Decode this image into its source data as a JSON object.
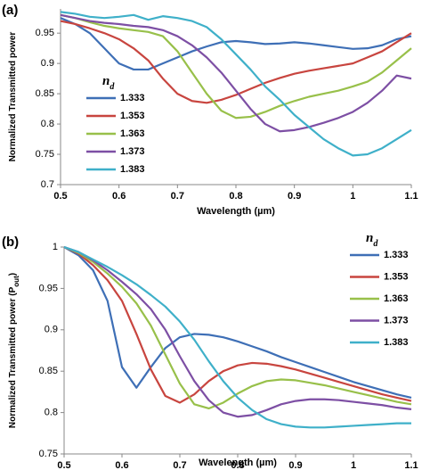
{
  "chart_data": [
    {
      "type": "line",
      "label": "(a)",
      "xlabel": "Wavelength (µm)",
      "ylabel": "Normalized Transmitted power",
      "legend_title": {
        "base": "n",
        "sub": "d"
      },
      "legend": "lower left",
      "xlim": [
        0.5,
        1.1
      ],
      "xticks": [
        0.5,
        0.6,
        0.7,
        0.8,
        0.9,
        1,
        1.1
      ],
      "ylim": [
        0.7,
        0.99
      ],
      "yticks": [
        0.7,
        0.75,
        0.8,
        0.85,
        0.9,
        0.95
      ],
      "x": [
        0.5,
        0.525,
        0.55,
        0.575,
        0.6,
        0.625,
        0.65,
        0.675,
        0.7,
        0.725,
        0.75,
        0.775,
        0.8,
        0.825,
        0.85,
        0.875,
        0.9,
        0.925,
        0.95,
        0.975,
        1.0,
        1.025,
        1.05,
        1.075,
        1.1
      ],
      "series": [
        {
          "name": "1.333",
          "color": "#3e6fb6",
          "values": [
            0.975,
            0.965,
            0.95,
            0.925,
            0.9,
            0.89,
            0.89,
            0.9,
            0.91,
            0.92,
            0.928,
            0.935,
            0.937,
            0.935,
            0.932,
            0.933,
            0.935,
            0.933,
            0.93,
            0.927,
            0.924,
            0.925,
            0.93,
            0.94,
            0.945
          ]
        },
        {
          "name": "1.353",
          "color": "#c8453f",
          "values": [
            0.97,
            0.965,
            0.958,
            0.95,
            0.94,
            0.925,
            0.905,
            0.875,
            0.85,
            0.838,
            0.835,
            0.84,
            0.848,
            0.858,
            0.868,
            0.876,
            0.883,
            0.888,
            0.892,
            0.896,
            0.9,
            0.91,
            0.92,
            0.935,
            0.95
          ]
        },
        {
          "name": "1.363",
          "color": "#98c04a",
          "values": [
            0.98,
            0.975,
            0.968,
            0.962,
            0.958,
            0.955,
            0.952,
            0.945,
            0.92,
            0.885,
            0.85,
            0.822,
            0.81,
            0.812,
            0.82,
            0.83,
            0.838,
            0.845,
            0.85,
            0.855,
            0.862,
            0.87,
            0.885,
            0.905,
            0.925
          ]
        },
        {
          "name": "1.373",
          "color": "#7d4fa4",
          "values": [
            0.98,
            0.975,
            0.97,
            0.967,
            0.965,
            0.962,
            0.96,
            0.955,
            0.945,
            0.93,
            0.91,
            0.885,
            0.855,
            0.825,
            0.8,
            0.788,
            0.79,
            0.795,
            0.802,
            0.81,
            0.82,
            0.835,
            0.855,
            0.88,
            0.875
          ]
        },
        {
          "name": "1.383",
          "color": "#3fb0c9",
          "values": [
            0.985,
            0.982,
            0.977,
            0.975,
            0.977,
            0.98,
            0.972,
            0.978,
            0.975,
            0.97,
            0.96,
            0.94,
            0.915,
            0.89,
            0.862,
            0.84,
            0.815,
            0.795,
            0.775,
            0.76,
            0.748,
            0.75,
            0.76,
            0.775,
            0.79
          ]
        }
      ]
    },
    {
      "type": "line",
      "label": "(b)",
      "xlabel": "Wavelength (µm)",
      "ylabel": "Normalized Transmitted power (P",
      "ylabel_sub": "out",
      "ylabel_end": ")",
      "legend_title": {
        "base": "n",
        "sub": "d"
      },
      "legend": "upper right",
      "xlim": [
        0.5,
        1.1
      ],
      "xticks": [
        0.5,
        0.6,
        0.7,
        0.8,
        0.9,
        1,
        1.1
      ],
      "ylim": [
        0.75,
        1
      ],
      "yticks": [
        0.75,
        0.8,
        0.85,
        0.9,
        0.95,
        1
      ],
      "x": [
        0.5,
        0.525,
        0.55,
        0.575,
        0.6,
        0.625,
        0.65,
        0.675,
        0.7,
        0.725,
        0.75,
        0.775,
        0.8,
        0.825,
        0.85,
        0.875,
        0.9,
        0.925,
        0.95,
        0.975,
        1.0,
        1.025,
        1.05,
        1.075,
        1.1
      ],
      "series": [
        {
          "name": "1.333",
          "color": "#3e6fb6",
          "values": [
            1,
            0.99,
            0.972,
            0.935,
            0.855,
            0.83,
            0.855,
            0.878,
            0.891,
            0.895,
            0.894,
            0.891,
            0.886,
            0.88,
            0.874,
            0.867,
            0.861,
            0.855,
            0.849,
            0.843,
            0.837,
            0.832,
            0.827,
            0.822,
            0.818
          ]
        },
        {
          "name": "1.353",
          "color": "#c8453f",
          "values": [
            1,
            0.992,
            0.978,
            0.96,
            0.935,
            0.895,
            0.852,
            0.82,
            0.812,
            0.822,
            0.838,
            0.85,
            0.857,
            0.86,
            0.859,
            0.856,
            0.852,
            0.847,
            0.842,
            0.837,
            0.832,
            0.827,
            0.822,
            0.818,
            0.814
          ]
        },
        {
          "name": "1.363",
          "color": "#98c04a",
          "values": [
            1,
            0.993,
            0.982,
            0.968,
            0.952,
            0.932,
            0.905,
            0.87,
            0.835,
            0.81,
            0.805,
            0.812,
            0.823,
            0.832,
            0.838,
            0.84,
            0.839,
            0.836,
            0.833,
            0.829,
            0.825,
            0.821,
            0.817,
            0.813,
            0.81
          ]
        },
        {
          "name": "1.373",
          "color": "#7d4fa4",
          "values": [
            1,
            0.994,
            0.984,
            0.972,
            0.958,
            0.943,
            0.925,
            0.9,
            0.868,
            0.838,
            0.815,
            0.8,
            0.795,
            0.797,
            0.803,
            0.81,
            0.814,
            0.816,
            0.816,
            0.815,
            0.813,
            0.811,
            0.809,
            0.806,
            0.804
          ]
        },
        {
          "name": "1.383",
          "color": "#3fb0c9",
          "values": [
            1,
            0.994,
            0.985,
            0.976,
            0.966,
            0.955,
            0.942,
            0.928,
            0.91,
            0.888,
            0.862,
            0.838,
            0.818,
            0.803,
            0.792,
            0.786,
            0.783,
            0.782,
            0.782,
            0.783,
            0.784,
            0.785,
            0.786,
            0.787,
            0.787
          ]
        }
      ]
    }
  ]
}
